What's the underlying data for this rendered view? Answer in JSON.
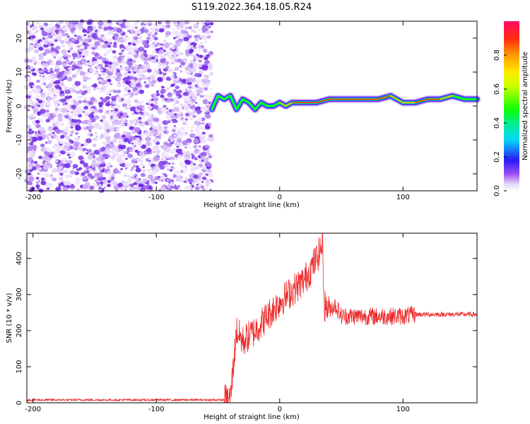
{
  "title": "S119.2022.364.18.05.R24",
  "chart_data": [
    {
      "type": "heatmap",
      "xlabel": "Height of straight line (km)",
      "ylabel": "Frequency (Hz)",
      "xlim": [
        -205,
        160
      ],
      "ylim": [
        -25,
        25
      ],
      "xticks": [
        -200,
        -100,
        0,
        100
      ],
      "yticks": [
        -20,
        -10,
        0,
        10,
        20
      ],
      "noise_region_x": [
        -205,
        -55
      ],
      "ridge": {
        "x": [
          -55,
          -50,
          -45,
          -40,
          -35,
          -30,
          -25,
          -20,
          -15,
          -10,
          -5,
          0,
          5,
          10,
          20,
          30,
          40,
          50,
          60,
          70,
          80,
          90,
          95,
          100,
          110,
          120,
          130,
          140,
          150,
          160
        ],
        "y": [
          -1,
          3,
          2,
          3,
          -1,
          2,
          1,
          -1,
          1,
          0,
          0,
          1,
          0,
          1,
          1,
          1,
          2,
          2,
          2,
          2,
          2,
          3,
          2,
          1,
          1,
          2,
          2,
          3,
          2,
          2
        ],
        "amplitude": [
          0.3,
          0.4,
          0.4,
          0.4,
          0.5,
          0.5,
          0.5,
          0.6,
          0.6,
          0.7,
          0.7,
          0.75,
          0.8,
          0.85,
          0.9,
          0.85,
          0.85,
          0.85,
          0.9,
          0.85,
          0.85,
          0.8,
          0.75,
          0.8,
          0.85,
          0.85,
          0.8,
          0.7,
          0.65,
          0.65
        ]
      },
      "colorbar": {
        "label": "Normalized spectral amplitude",
        "range": [
          0,
          1
        ],
        "ticks": [
          "0.0",
          "0.2",
          "0.4",
          "0.6",
          "0.8"
        ]
      }
    },
    {
      "type": "line",
      "xlabel": "Height of straight line (km)",
      "ylabel": "SNR (10 * v/v)",
      "xlim": [
        -205,
        160
      ],
      "ylim": [
        0,
        470
      ],
      "xticks": [
        -200,
        -100,
        0,
        100
      ],
      "yticks": [
        0,
        100,
        200,
        300,
        400
      ],
      "color": "#ee2a2a",
      "series": [
        {
          "x": [
            -205,
            -45,
            -40,
            -35,
            -30,
            -20,
            -10,
            0,
            10,
            20,
            30,
            35,
            36,
            40,
            45,
            50,
            60,
            70,
            80,
            90,
            100,
            110,
            120,
            130,
            140,
            150,
            160
          ],
          "y": [
            8,
            8,
            10,
            200,
            170,
            200,
            240,
            280,
            310,
            340,
            400,
            440,
            270,
            260,
            270,
            240,
            240,
            240,
            240,
            240,
            240,
            245,
            245,
            245,
            245,
            245,
            245
          ]
        }
      ]
    }
  ]
}
